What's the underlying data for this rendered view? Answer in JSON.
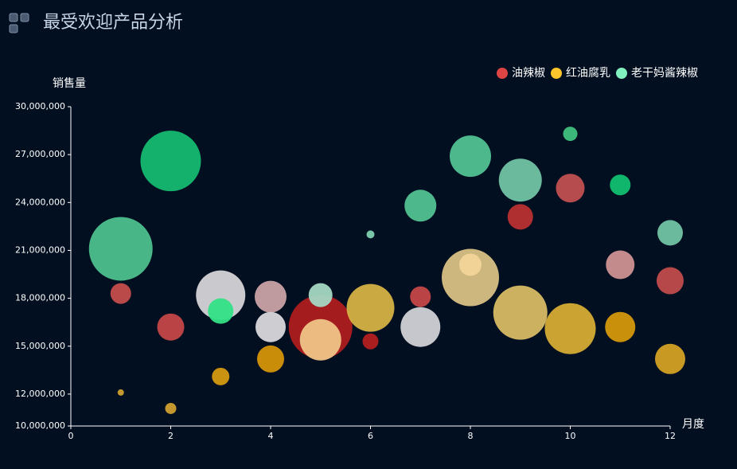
{
  "chart_data": {
    "type": "bubble",
    "title": "最受欢迎产品分析",
    "y_label": "销售量",
    "x_label": "月度",
    "xlim": [
      0,
      12
    ],
    "xticks": [
      0,
      2,
      4,
      6,
      8,
      10,
      12
    ],
    "ylim": [
      10000000,
      30000000
    ],
    "yticks": [
      {
        "value": 10000000,
        "label": "10,000,000"
      },
      {
        "value": 12000000,
        "label": "12,000,000"
      },
      {
        "value": 15000000,
        "label": "15,000,000"
      },
      {
        "value": 18000000,
        "label": "18,000,000"
      },
      {
        "value": 21000000,
        "label": "21,000,000"
      },
      {
        "value": 24000000,
        "label": "24,000,000"
      },
      {
        "value": 27000000,
        "label": "27,000,000"
      },
      {
        "value": 30000000,
        "label": "30,000,000"
      }
    ],
    "legend": "top-right",
    "series": [
      {
        "name": "油辣椒",
        "color": "#dd4444",
        "x": [
          1,
          2,
          3,
          4,
          5,
          6,
          7,
          9,
          10,
          11,
          12
        ],
        "values": [
          18300000,
          16200000,
          18200000,
          18100000,
          16200000,
          15300000,
          18100000,
          23100000,
          24900000,
          20100000,
          19100000
        ],
        "sizes": [
          13,
          17,
          31,
          20,
          40,
          10,
          13,
          16,
          18,
          18,
          17
        ],
        "colors": [
          "#c44d4d",
          "#c44848",
          "#d4d4d8",
          "#c9a2a6",
          "#ad1e1e",
          "#b42020",
          "#c44848",
          "#b83232",
          "#c05050",
          "#cf9294",
          "#c04c4c"
        ]
      },
      {
        "name": "红油腐乳",
        "color": "#fec42c",
        "x": [
          1,
          2,
          3,
          4,
          4,
          5,
          6,
          7,
          8,
          8,
          9,
          10,
          11,
          12
        ],
        "values": [
          12100000,
          11100000,
          13100000,
          14200000,
          16200000,
          15400000,
          17400000,
          16200000,
          19300000,
          20100000,
          17100000,
          16100000,
          16200000,
          14200000
        ],
        "sizes": [
          4,
          7,
          11,
          17,
          19,
          26,
          30,
          25,
          36,
          14,
          34,
          32,
          19,
          19
        ],
        "colors": [
          "#d0a030",
          "#d0a030",
          "#d49a10",
          "#d4950a",
          "#d8d8dc",
          "#f0c488",
          "#d6b244",
          "#d0d2d6",
          "#d9c184",
          "#f2d49a",
          "#d6ba64",
          "#d6ac34",
          "#d4980c",
          "#d4a224"
        ]
      },
      {
        "name": "老干妈酱辣椒",
        "color": "#80f1be",
        "x": [
          1,
          2,
          3,
          5,
          6,
          7,
          8,
          9,
          10,
          11,
          12
        ],
        "values": [
          21100000,
          26600000,
          17200000,
          18200000,
          22000000,
          23800000,
          26900000,
          25400000,
          28300000,
          25100000,
          22100000
        ],
        "sizes": [
          40,
          38,
          16,
          15,
          5,
          20,
          26,
          27,
          9,
          13,
          16
        ],
        "colors": [
          "#4cc08c",
          "#14ba70",
          "#34e286",
          "#a4d8c4",
          "#80d0b0",
          "#52c294",
          "#52c294",
          "#72c4a4",
          "#40c080",
          "#10c070",
          "#72c4a4"
        ]
      }
    ]
  }
}
